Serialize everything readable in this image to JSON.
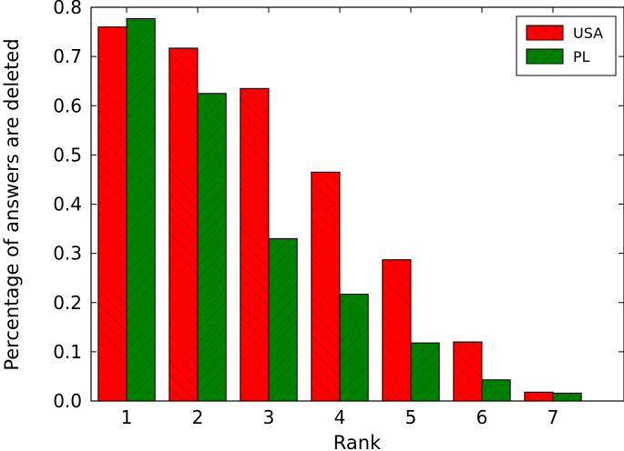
{
  "chart_data": {
    "type": "bar",
    "title": "",
    "xlabel": "Rank",
    "ylabel": "Percentage of answers are deleted",
    "categories": [
      "1",
      "2",
      "3",
      "4",
      "5",
      "6",
      "7"
    ],
    "xlim": [
      0.5,
      8.0
    ],
    "ylim": [
      0.0,
      0.8
    ],
    "yticks": [
      "0.0",
      "0.1",
      "0.2",
      "0.3",
      "0.4",
      "0.5",
      "0.6",
      "0.7",
      "0.8"
    ],
    "grid": false,
    "legend": {
      "position": "top-right"
    },
    "series": [
      {
        "name": "USA",
        "color": "#ff0000",
        "hatch": "forward-diagonal",
        "values": [
          0.76,
          0.717,
          0.635,
          0.465,
          0.287,
          0.12,
          0.018
        ]
      },
      {
        "name": "PL",
        "color": "#008000",
        "hatch": "backward-diagonal",
        "values": [
          0.777,
          0.625,
          0.33,
          0.217,
          0.118,
          0.043,
          0.016
        ]
      }
    ]
  }
}
